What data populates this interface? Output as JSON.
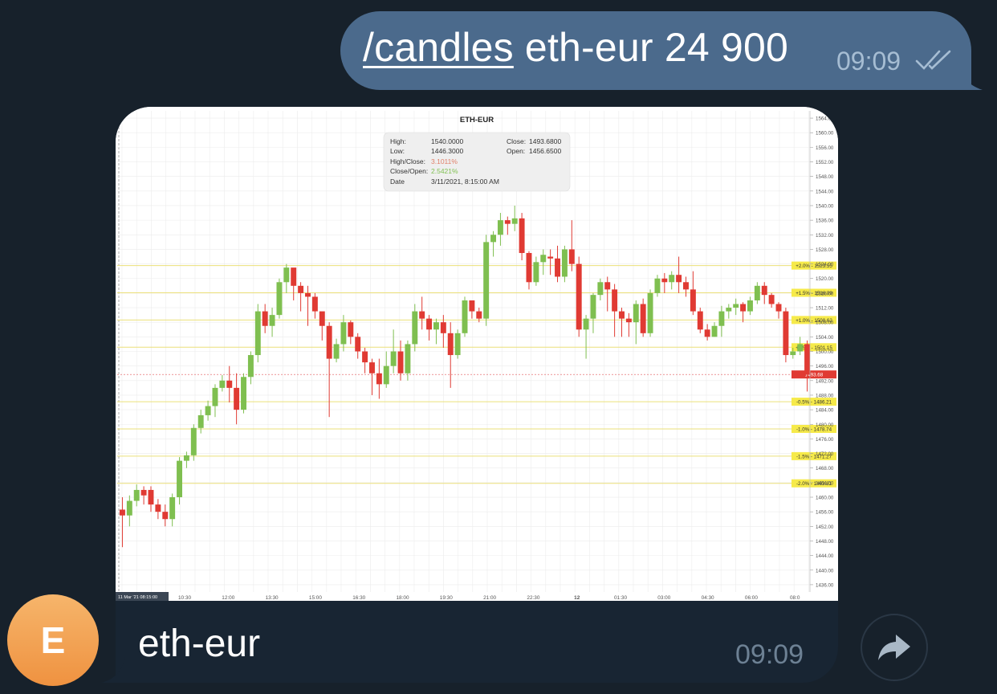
{
  "outgoing": {
    "command": "/candles",
    "args": " eth-eur 24 900",
    "time": "09:09",
    "status_icon": "double-check-icon"
  },
  "incoming": {
    "avatar_letter": "E",
    "caption": "eth-eur",
    "time": "09:09",
    "share_icon": "share-arrow-icon"
  },
  "colors": {
    "background": "#17212b",
    "outgoing_bubble": "#4b6a8c",
    "incoming_bubble": "#182533",
    "candle_up": "#7fbf50",
    "candle_down": "#e03a33",
    "avatar": "#f2a156"
  },
  "chart_data": {
    "type": "candlestick",
    "title": "ETH-EUR",
    "ylim": [
      1434,
      1566
    ],
    "y_ticks": [
      "1436.00",
      "1440.00",
      "1444.00",
      "1448.00",
      "1452.00",
      "1456.00",
      "1460.00",
      "1464.00",
      "1468.00",
      "1472.00",
      "1476.00",
      "1480.00",
      "1484.00",
      "1488.00",
      "1492.00",
      "1496.00",
      "1500.00",
      "1504.00",
      "1508.00",
      "1512.00",
      "1516.00",
      "1520.00",
      "1524.00",
      "1528.00",
      "1532.00",
      "1536.00",
      "1540.00",
      "1544.00",
      "1548.00",
      "1552.00",
      "1556.00",
      "1560.00",
      "1564.00"
    ],
    "x_ticks": [
      "10:30",
      "12:00",
      "13:30",
      "15:00",
      "16:30",
      "18:00",
      "19:30",
      "21:00",
      "22:30",
      "12",
      "01:30",
      "03:00",
      "04:30",
      "06:00",
      "08:0"
    ],
    "x_start_label": "11 Mar '21  08:15:00",
    "tooltip": {
      "high_label": "High:",
      "high": "1540.0000",
      "low_label": "Low:",
      "low": "1446.3000",
      "close_label": "Close:",
      "close": "1493.6800",
      "open_label": "Open:",
      "open": "1456.6500",
      "hc_label": "High/Close:",
      "hc": "3.1011%",
      "co_label": "Close/Open:",
      "co": "2.5421%",
      "date_label": "Date",
      "date": "3/11/2021, 8:15:00 AM"
    },
    "levels": [
      {
        "label": "+2.0% - 1523.55",
        "value": 1523.55
      },
      {
        "label": "+1.5% - 1516.09",
        "value": 1516.09
      },
      {
        "label": "+1.0% - 1508.62",
        "value": 1508.62
      },
      {
        "label": "+0.5% - 1501.15",
        "value": 1501.15
      },
      {
        "label": "-0.5% - 1486.21",
        "value": 1486.21
      },
      {
        "label": "-1.0% - 1478.74",
        "value": 1478.74
      },
      {
        "label": "-1.5% - 1471.27",
        "value": 1471.27
      },
      {
        "label": "-2.0% - 1463.81",
        "value": 1463.81
      }
    ],
    "current_price": {
      "label": "1493.68",
      "value": 1493.68
    },
    "candles": [
      [
        1456.6,
        1455.0,
        1460.0,
        1446.3
      ],
      [
        1455.0,
        1459.0,
        1460.5,
        1452.0
      ],
      [
        1459.0,
        1462.0,
        1463.5,
        1457.5
      ],
      [
        1462.0,
        1460.5,
        1463.0,
        1458.0
      ],
      [
        1462.0,
        1458.0,
        1463.0,
        1456.0
      ],
      [
        1458.0,
        1456.0,
        1459.5,
        1454.0
      ],
      [
        1456.0,
        1454.0,
        1458.0,
        1452.0
      ],
      [
        1454.0,
        1460.0,
        1461.0,
        1452.0
      ],
      [
        1460.0,
        1470.0,
        1471.0,
        1458.0
      ],
      [
        1470.0,
        1471.5,
        1472.5,
        1468.0
      ],
      [
        1471.5,
        1479.0,
        1480.0,
        1470.0
      ],
      [
        1479.0,
        1482.5,
        1484.0,
        1477.5
      ],
      [
        1482.5,
        1485.0,
        1486.5,
        1481.0
      ],
      [
        1485.0,
        1490.0,
        1491.0,
        1482.0
      ],
      [
        1490.0,
        1492.0,
        1493.5,
        1489.0
      ],
      [
        1492.0,
        1490.0,
        1496.0,
        1486.0
      ],
      [
        1490.0,
        1484.0,
        1494.0,
        1480.0
      ],
      [
        1484.0,
        1493.0,
        1494.0,
        1483.0
      ],
      [
        1493.0,
        1499.0,
        1500.0,
        1491.0
      ],
      [
        1499.0,
        1511.0,
        1513.0,
        1497.0
      ],
      [
        1511.0,
        1507.0,
        1513.0,
        1505.0
      ],
      [
        1507.0,
        1510.0,
        1512.0,
        1504.0
      ],
      [
        1510.0,
        1519.0,
        1520.0,
        1509.0
      ],
      [
        1519.0,
        1523.0,
        1524.0,
        1516.0
      ],
      [
        1523.0,
        1518.0,
        1522.0,
        1514.0
      ],
      [
        1518.0,
        1516.0,
        1519.0,
        1511.0
      ],
      [
        1516.0,
        1515.0,
        1518.0,
        1507.0
      ],
      [
        1515.0,
        1511.0,
        1516.0,
        1509.0
      ],
      [
        1511.0,
        1507.0,
        1510.0,
        1503.0
      ],
      [
        1507.0,
        1498.0,
        1508.0,
        1482.0
      ],
      [
        1498.0,
        1502.0,
        1503.5,
        1497.0
      ],
      [
        1502.0,
        1508.0,
        1510.0,
        1500.0
      ],
      [
        1508.0,
        1504.0,
        1508.5,
        1502.0
      ],
      [
        1504.0,
        1500.0,
        1505.0,
        1498.0
      ],
      [
        1500.0,
        1497.0,
        1501.0,
        1494.0
      ],
      [
        1497.0,
        1494.0,
        1498.0,
        1488.0
      ],
      [
        1494.0,
        1491.0,
        1498.0,
        1487.0
      ],
      [
        1491.0,
        1496.0,
        1500.0,
        1490.0
      ],
      [
        1496.0,
        1500.0,
        1506.0,
        1494.0
      ],
      [
        1500.0,
        1494.0,
        1503.0,
        1492.0
      ],
      [
        1494.0,
        1502.0,
        1503.0,
        1492.0
      ],
      [
        1502.0,
        1511.0,
        1513.0,
        1500.0
      ],
      [
        1511.0,
        1509.0,
        1515.0,
        1506.0
      ],
      [
        1509.0,
        1506.0,
        1510.0,
        1503.0
      ],
      [
        1506.0,
        1508.0,
        1509.0,
        1502.0
      ],
      [
        1508.0,
        1505.0,
        1510.0,
        1501.0
      ],
      [
        1505.0,
        1499.0,
        1508.0,
        1490.0
      ],
      [
        1499.0,
        1505.0,
        1506.0,
        1498.0
      ],
      [
        1505.0,
        1514.0,
        1515.0,
        1504.0
      ],
      [
        1514.0,
        1511.0,
        1512.5,
        1509.0
      ],
      [
        1511.0,
        1509.0,
        1512.0,
        1508.0
      ],
      [
        1509.0,
        1530.0,
        1532.0,
        1507.0
      ],
      [
        1530.0,
        1532.0,
        1533.0,
        1526.0
      ],
      [
        1532.0,
        1536.0,
        1538.0,
        1529.0
      ],
      [
        1536.0,
        1535.0,
        1537.0,
        1532.0
      ],
      [
        1535.0,
        1536.5,
        1540.0,
        1533.0
      ],
      [
        1536.5,
        1527.0,
        1538.0,
        1525.0
      ],
      [
        1527.0,
        1519.0,
        1527.5,
        1517.0
      ],
      [
        1519.0,
        1524.5,
        1526.0,
        1518.0
      ],
      [
        1524.5,
        1526.5,
        1528.0,
        1521.0
      ],
      [
        1526.0,
        1525.5,
        1528.0,
        1521.0
      ],
      [
        1525.5,
        1520.5,
        1529.0,
        1519.0
      ],
      [
        1520.5,
        1528.0,
        1529.0,
        1519.0
      ],
      [
        1528.0,
        1524.0,
        1536.0,
        1522.0
      ],
      [
        1524.0,
        1506.0,
        1526.0,
        1504.0
      ],
      [
        1506.0,
        1509.0,
        1510.0,
        1498.0
      ],
      [
        1509.0,
        1515.5,
        1516.0,
        1505.0
      ],
      [
        1515.5,
        1519.0,
        1520.0,
        1514.0
      ],
      [
        1519.0,
        1517.0,
        1520.5,
        1511.0
      ],
      [
        1517.0,
        1511.0,
        1518.5,
        1504.0
      ],
      [
        1511.0,
        1509.0,
        1512.0,
        1504.0
      ],
      [
        1509.0,
        1508.0,
        1510.5,
        1504.0
      ],
      [
        1508.0,
        1513.0,
        1514.0,
        1502.0
      ],
      [
        1513.0,
        1505.0,
        1514.5,
        1504.0
      ],
      [
        1505.0,
        1516.0,
        1517.0,
        1504.0
      ],
      [
        1516.0,
        1520.0,
        1521.0,
        1515.0
      ],
      [
        1520.0,
        1519.0,
        1521.5,
        1516.0
      ],
      [
        1519.0,
        1521.0,
        1522.0,
        1517.0
      ],
      [
        1521.0,
        1519.0,
        1526.0,
        1516.0
      ],
      [
        1519.0,
        1517.0,
        1520.5,
        1515.0
      ],
      [
        1517.0,
        1511.0,
        1522.0,
        1510.0
      ],
      [
        1511.0,
        1506.0,
        1512.0,
        1505.0
      ],
      [
        1506.0,
        1504.0,
        1507.5,
        1503.0
      ],
      [
        1504.0,
        1507.0,
        1508.0,
        1504.0
      ],
      [
        1507.0,
        1511.0,
        1512.5,
        1504.0
      ],
      [
        1511.0,
        1512.0,
        1513.0,
        1509.0
      ],
      [
        1512.0,
        1513.0,
        1514.5,
        1510.0
      ],
      [
        1513.0,
        1511.0,
        1513.5,
        1508.0
      ],
      [
        1511.0,
        1514.0,
        1515.0,
        1510.0
      ],
      [
        1514.0,
        1518.0,
        1519.0,
        1513.0
      ],
      [
        1518.0,
        1515.5,
        1519.0,
        1513.0
      ],
      [
        1515.5,
        1513.0,
        1516.0,
        1512.0
      ],
      [
        1513.0,
        1511.0,
        1513.5,
        1509.0
      ],
      [
        1511.0,
        1499.0,
        1512.0,
        1497.0
      ],
      [
        1499.0,
        1500.0,
        1501.0,
        1498.0
      ],
      [
        1500.0,
        1502.0,
        1504.0,
        1499.0
      ],
      [
        1502.0,
        1493.68,
        1503.0,
        1489.0
      ]
    ]
  }
}
